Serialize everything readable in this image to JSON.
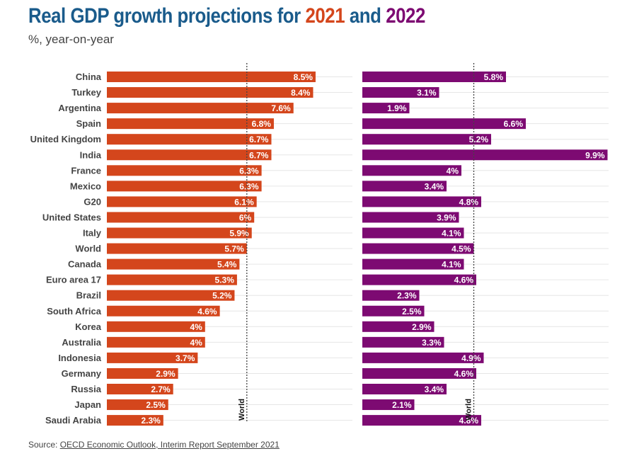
{
  "header": {
    "title_prefix": "Real GDP growth projections for ",
    "year_2021": "2021",
    "title_and": " and ",
    "year_2022": "2022",
    "subtitle": "%, year-on-year"
  },
  "colors": {
    "year_2021": "#d4461c",
    "year_2022": "#7d0a72",
    "title": "#1a5b8b"
  },
  "source": {
    "label": "Source: ",
    "link_text": "OECD Economic Outlook, Interim Report September 2021"
  },
  "chart_data": {
    "type": "bar",
    "orientation": "horizontal",
    "categories": [
      "China",
      "Turkey",
      "Argentina",
      "Spain",
      "United Kingdom",
      "India",
      "France",
      "Mexico",
      "G20",
      "United States",
      "Italy",
      "World",
      "Canada",
      "Euro area 17",
      "Brazil",
      "South Africa",
      "Korea",
      "Australia",
      "Indonesia",
      "Germany",
      "Russia",
      "Japan",
      "Saudi Arabia"
    ],
    "series": [
      {
        "name": "2021",
        "values": [
          8.5,
          8.4,
          7.6,
          6.8,
          6.7,
          6.7,
          6.3,
          6.3,
          6.1,
          6,
          5.9,
          5.7,
          5.4,
          5.3,
          5.2,
          4.6,
          4,
          4,
          3.7,
          2.9,
          2.7,
          2.5,
          2.3
        ],
        "labels": [
          "8.5%",
          "8.4%",
          "7.6%",
          "6.8%",
          "6.7%",
          "6.7%",
          "6.3%",
          "6.3%",
          "6.1%",
          "6%",
          "5.9%",
          "5.7%",
          "5.4%",
          "5.3%",
          "5.2%",
          "4.6%",
          "4%",
          "4%",
          "3.7%",
          "2.9%",
          "2.7%",
          "2.5%",
          "2.3%"
        ]
      },
      {
        "name": "2022",
        "values": [
          5.8,
          3.1,
          1.9,
          6.6,
          5.2,
          9.9,
          4,
          3.4,
          4.8,
          3.9,
          4.1,
          4.5,
          4.1,
          4.6,
          2.3,
          2.5,
          2.9,
          3.3,
          4.9,
          4.6,
          3.4,
          2.1,
          4.8
        ],
        "labels": [
          "5.8%",
          "3.1%",
          "1.9%",
          "6.6%",
          "5.2%",
          "9.9%",
          "4%",
          "3.4%",
          "4.8%",
          "3.9%",
          "4.1%",
          "4.5%",
          "4.1%",
          "4.6%",
          "2.3%",
          "2.5%",
          "2.9%",
          "3.3%",
          "4.9%",
          "4.6%",
          "3.4%",
          "2.1%",
          "4.8%"
        ]
      }
    ],
    "reference_lines": [
      {
        "panel": "2021",
        "label": "World",
        "value": 5.7
      },
      {
        "panel": "2022",
        "label": "World",
        "value": 4.5
      }
    ],
    "grid": true
  }
}
